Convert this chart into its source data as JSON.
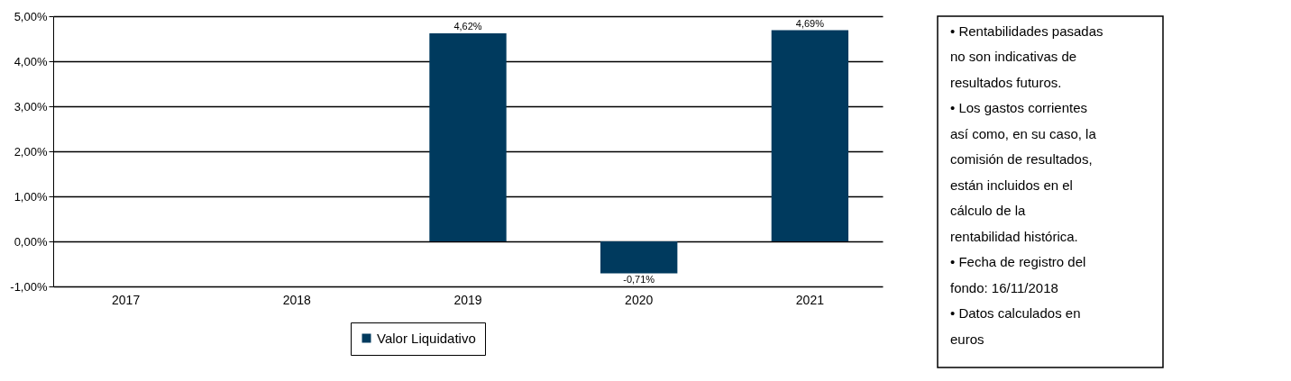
{
  "chart_data": {
    "type": "bar",
    "categories": [
      "2017",
      "2018",
      "2019",
      "2020",
      "2021"
    ],
    "series": [
      {
        "name": "Valor Liquidativo",
        "color": "#003a5e",
        "values": [
          null,
          null,
          4.62,
          -0.71,
          4.69
        ],
        "value_labels": [
          null,
          null,
          "4,62%",
          "-0,71%",
          "4,69%"
        ]
      }
    ],
    "ylim": [
      -1,
      5
    ],
    "yticks": [
      {
        "value": -1,
        "label": "-1,00%"
      },
      {
        "value": 0,
        "label": "0,00%"
      },
      {
        "value": 1,
        "label": "1,00%"
      },
      {
        "value": 2,
        "label": "2,00%"
      },
      {
        "value": 3,
        "label": "3,00%"
      },
      {
        "value": 4,
        "label": "4,00%"
      },
      {
        "value": 5,
        "label": "5,00%"
      }
    ],
    "grid": "y",
    "legend": "bottom",
    "annotations": [
      "• Rentabilidades pasadas no son indicativas de resultados futuros.",
      "• Los gastos corrientes así como, en su caso, la comisión de resultados, están incluidos en el cálculo de la rentabilidad histórica.",
      "• Fecha de registro del fondo: 16/11/2018",
      "• Datos calculados en euros"
    ]
  }
}
